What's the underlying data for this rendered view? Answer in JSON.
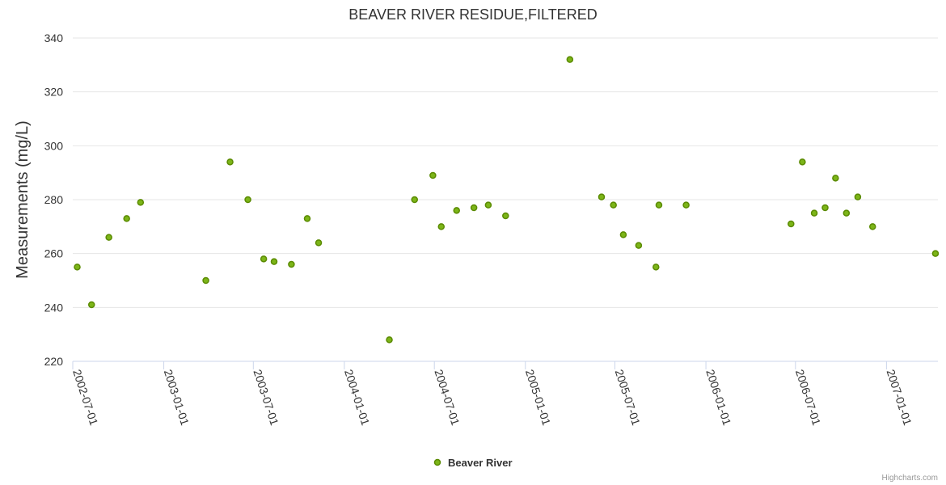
{
  "chart_data": {
    "type": "scatter",
    "title": "BEAVER RIVER RESIDUE,FILTERED",
    "xlabel": "",
    "ylabel": "Measurements (mg/L)",
    "ylim": [
      220,
      340
    ],
    "yticks": [
      220,
      240,
      260,
      280,
      300,
      320,
      340
    ],
    "xticks": [
      "2002-07-01",
      "2003-01-01",
      "2003-07-01",
      "2004-01-01",
      "2004-07-01",
      "2005-01-01",
      "2005-07-01",
      "2006-01-01",
      "2006-07-01",
      "2007-01-01"
    ],
    "xlim": [
      "2002-07-01",
      "2007-04-15"
    ],
    "grid": true,
    "legend_position": "bottom-center",
    "series": [
      {
        "name": "Beaver River",
        "color": "#7cb518",
        "border_color": "#5a8a00",
        "points": [
          {
            "x": "2002-07-10",
            "y": 255
          },
          {
            "x": "2002-08-08",
            "y": 241
          },
          {
            "x": "2002-09-12",
            "y": 266
          },
          {
            "x": "2002-10-18",
            "y": 273
          },
          {
            "x": "2002-11-15",
            "y": 279
          },
          {
            "x": "2003-03-27",
            "y": 250
          },
          {
            "x": "2003-05-15",
            "y": 294
          },
          {
            "x": "2003-06-20",
            "y": 280
          },
          {
            "x": "2003-07-22",
            "y": 258
          },
          {
            "x": "2003-08-12",
            "y": 257
          },
          {
            "x": "2003-09-16",
            "y": 256
          },
          {
            "x": "2003-10-18",
            "y": 273
          },
          {
            "x": "2003-11-10",
            "y": 264
          },
          {
            "x": "2004-04-01",
            "y": 228
          },
          {
            "x": "2004-05-22",
            "y": 280
          },
          {
            "x": "2004-06-28",
            "y": 289
          },
          {
            "x": "2004-07-15",
            "y": 270
          },
          {
            "x": "2004-08-15",
            "y": 276
          },
          {
            "x": "2004-09-19",
            "y": 277
          },
          {
            "x": "2004-10-18",
            "y": 278
          },
          {
            "x": "2004-11-22",
            "y": 274
          },
          {
            "x": "2005-04-01",
            "y": 332
          },
          {
            "x": "2005-06-04",
            "y": 281
          },
          {
            "x": "2005-06-28",
            "y": 278
          },
          {
            "x": "2005-07-18",
            "y": 267
          },
          {
            "x": "2005-08-18",
            "y": 263
          },
          {
            "x": "2005-09-22",
            "y": 255
          },
          {
            "x": "2005-09-28",
            "y": 278
          },
          {
            "x": "2005-11-22",
            "y": 278
          },
          {
            "x": "2006-06-22",
            "y": 271
          },
          {
            "x": "2006-07-15",
            "y": 294
          },
          {
            "x": "2006-08-08",
            "y": 275
          },
          {
            "x": "2006-08-30",
            "y": 277
          },
          {
            "x": "2006-09-20",
            "y": 288
          },
          {
            "x": "2006-10-12",
            "y": 275
          },
          {
            "x": "2006-11-04",
            "y": 281
          },
          {
            "x": "2006-12-04",
            "y": 270
          },
          {
            "x": "2007-04-10",
            "y": 260
          }
        ]
      }
    ]
  },
  "credits": "Highcharts.com"
}
